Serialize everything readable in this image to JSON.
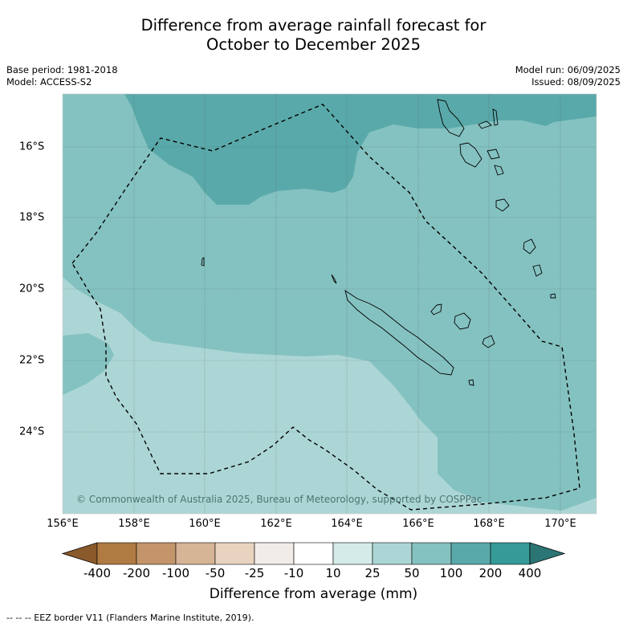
{
  "title_line1": "Difference from average rainfall forecast for",
  "title_line2": "October to December 2025",
  "meta_left": {
    "base_period": "Base period: 1981-2018",
    "model": "Model: ACCESS-S2"
  },
  "meta_right": {
    "model_run": "Model run: 06/09/2025",
    "issued": "Issued: 08/09/2025"
  },
  "copyright": "© Commonwealth of Australia 2025, Bureau of Meteorology, supported by COSPPac",
  "x_ticks": [
    "156°E",
    "158°E",
    "160°E",
    "162°E",
    "164°E",
    "166°E",
    "168°E",
    "170°E"
  ],
  "y_ticks": [
    "16°S",
    "18°S",
    "20°S",
    "22°S",
    "24°S"
  ],
  "colorbar": {
    "labels": [
      "-400",
      "-200",
      "-100",
      "-50",
      "-25",
      "-10",
      "10",
      "25",
      "50",
      "100",
      "200",
      "400"
    ],
    "colors": [
      "#8a5a2b",
      "#b07a43",
      "#c4956a",
      "#d6b496",
      "#e8d3c0",
      "#f2ece8",
      "#ffffff",
      "#d4ebe9",
      "#acd6d5",
      "#84c2c1",
      "#5aa9aa",
      "#359a98",
      "#2b7674"
    ],
    "title": "Difference from average (mm)"
  },
  "footnote": "-- -- -- EEZ border V11 (Flanders Marine Institute, 2019).",
  "colors": {
    "lightest": "#acd6d5",
    "medium": "#84c2c1",
    "dark": "#5aa9aa"
  }
}
